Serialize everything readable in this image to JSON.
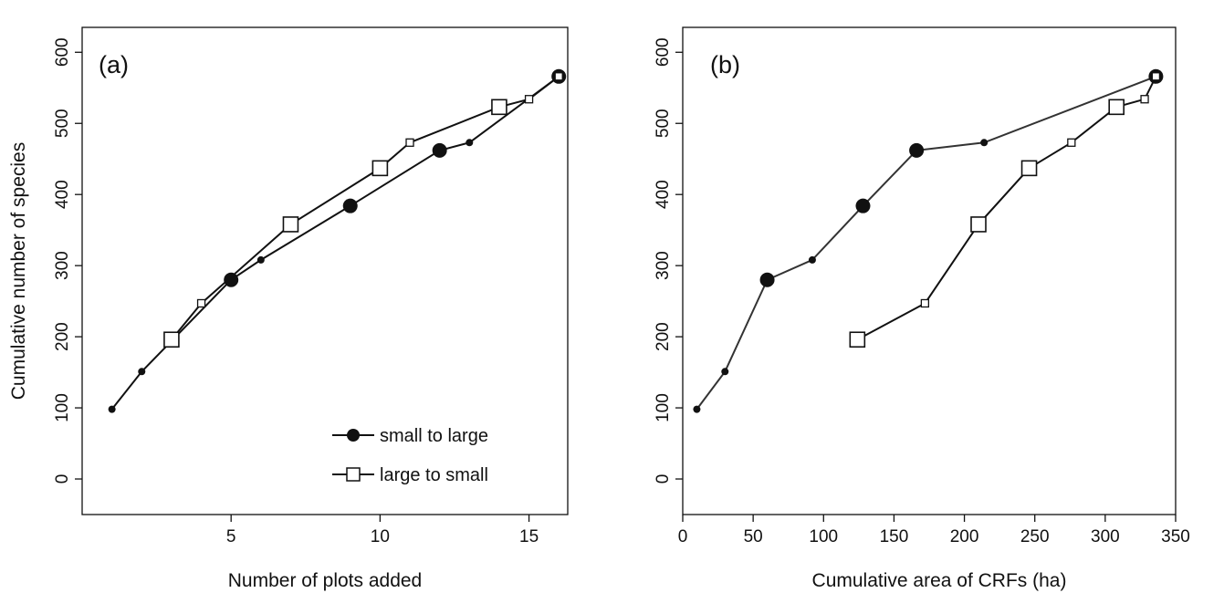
{
  "chart_data": [
    {
      "type": "line",
      "panel_label": "(a)",
      "xlabel": "Number of plots added",
      "ylabel": "Cumulative number of species",
      "xlim": [
        0.0,
        16.3
      ],
      "ylim": [
        -50,
        635
      ],
      "xticks": [
        5,
        10,
        15
      ],
      "yticks": [
        0,
        100,
        200,
        300,
        400,
        500,
        600
      ],
      "grid": false,
      "legend_position": "bottom-right",
      "series": [
        {
          "name": "small to large",
          "marker": "filled-circle",
          "color": "#111111",
          "points": [
            {
              "x": 1,
              "y": 98,
              "size": "small"
            },
            {
              "x": 2,
              "y": 151,
              "size": "small"
            },
            {
              "x": 5,
              "y": 280,
              "size": "large"
            },
            {
              "x": 6,
              "y": 308,
              "size": "small"
            },
            {
              "x": 9,
              "y": 384,
              "size": "large"
            },
            {
              "x": 12,
              "y": 462,
              "size": "large"
            },
            {
              "x": 13,
              "y": 473,
              "size": "small"
            },
            {
              "x": 16,
              "y": 566,
              "size": "large"
            }
          ]
        },
        {
          "name": "large to small",
          "marker": "open-square",
          "color": "#111111",
          "points": [
            {
              "x": 3,
              "y": 196,
              "size": "large"
            },
            {
              "x": 4,
              "y": 247,
              "size": "small"
            },
            {
              "x": 7,
              "y": 358,
              "size": "large"
            },
            {
              "x": 10,
              "y": 437,
              "size": "large"
            },
            {
              "x": 11,
              "y": 473,
              "size": "small"
            },
            {
              "x": 14,
              "y": 523,
              "size": "large"
            },
            {
              "x": 15,
              "y": 534,
              "size": "small"
            },
            {
              "x": 16,
              "y": 566,
              "size": "small"
            }
          ]
        }
      ]
    },
    {
      "type": "line",
      "panel_label": "(b)",
      "xlabel": "Cumulative area of CRFs (ha)",
      "ylabel": "",
      "xlim": [
        0,
        350
      ],
      "ylim": [
        -50,
        635
      ],
      "xticks": [
        0,
        50,
        100,
        150,
        200,
        250,
        300,
        350
      ],
      "yticks": [
        0,
        100,
        200,
        300,
        400,
        500,
        600
      ],
      "grid": false,
      "series": [
        {
          "name": "small to large",
          "marker": "filled-circle",
          "color": "#333333",
          "points": [
            {
              "x": 10,
              "y": 98,
              "size": "small"
            },
            {
              "x": 30,
              "y": 151,
              "size": "small"
            },
            {
              "x": 60,
              "y": 280,
              "size": "large"
            },
            {
              "x": 92,
              "y": 308,
              "size": "small"
            },
            {
              "x": 128,
              "y": 384,
              "size": "large"
            },
            {
              "x": 166,
              "y": 462,
              "size": "large"
            },
            {
              "x": 214,
              "y": 473,
              "size": "small"
            },
            {
              "x": 336,
              "y": 566,
              "size": "large"
            }
          ]
        },
        {
          "name": "large to small",
          "marker": "open-square",
          "color": "#111111",
          "points": [
            {
              "x": 124,
              "y": 196,
              "size": "large"
            },
            {
              "x": 172,
              "y": 247,
              "size": "small"
            },
            {
              "x": 210,
              "y": 358,
              "size": "large"
            },
            {
              "x": 246,
              "y": 437,
              "size": "large"
            },
            {
              "x": 276,
              "y": 473,
              "size": "small"
            },
            {
              "x": 308,
              "y": 523,
              "size": "large"
            },
            {
              "x": 328,
              "y": 534,
              "size": "small"
            },
            {
              "x": 336,
              "y": 566,
              "size": "small"
            }
          ]
        }
      ]
    }
  ],
  "legend": {
    "items": [
      {
        "label": "small to large",
        "marker": "filled-circle"
      },
      {
        "label": "large to small",
        "marker": "open-square"
      }
    ]
  }
}
